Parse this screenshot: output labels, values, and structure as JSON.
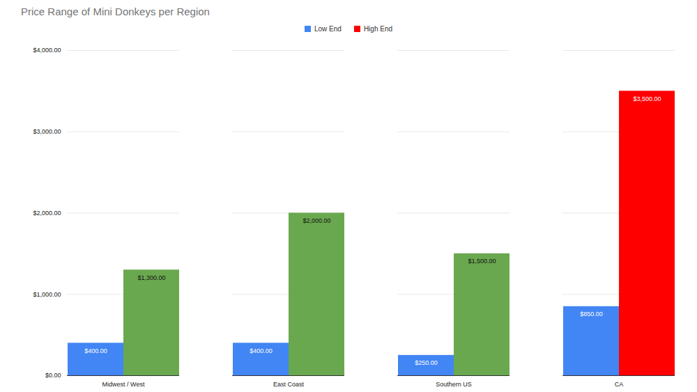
{
  "chart_data": {
    "type": "bar",
    "title": "Price Range of Mini Donkeys per Region",
    "categories": [
      "Midwest / West",
      "East Coast",
      "Southern US",
      "CA"
    ],
    "series": [
      {
        "name": "Low End",
        "color": "#4285f4",
        "values": [
          400,
          400,
          250,
          850
        ],
        "value_labels": [
          "$400.00",
          "$400.00",
          "$250.00",
          "$850.00"
        ]
      },
      {
        "name": "High End",
        "color": "#ff0000",
        "colors": [
          "#6aa84f",
          "#6aa84f",
          "#6aa84f",
          "#ff0000"
        ],
        "values": [
          1300,
          2000,
          1500,
          3500
        ],
        "value_labels": [
          "$1,300.00",
          "$2,000.00",
          "$1,500.00",
          "$3,500.00"
        ]
      }
    ],
    "ylim": [
      0,
      4000
    ],
    "yticks": [
      {
        "value": 0,
        "label": "$0.00"
      },
      {
        "value": 1000,
        "label": "$1,000.00"
      },
      {
        "value": 2000,
        "label": "$2,000.00"
      },
      {
        "value": 3000,
        "label": "$3,000.00"
      },
      {
        "value": 4000,
        "label": "$4,000.00"
      }
    ],
    "grid": true,
    "legend": "top",
    "data_labels": true
  }
}
